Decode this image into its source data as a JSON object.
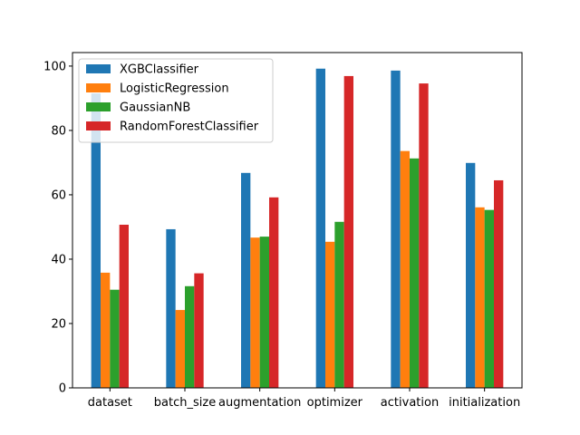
{
  "chart_data": {
    "type": "bar",
    "title": "",
    "xlabel": "",
    "ylabel": "",
    "categories": [
      "dataset",
      "batch_size",
      "augmentation",
      "optimizer",
      "activation",
      "initialization"
    ],
    "series": [
      {
        "name": "XGBClassifier",
        "color": "#1f77b4",
        "values": [
          91.5,
          49.3,
          66.8,
          99.2,
          98.6,
          69.9
        ]
      },
      {
        "name": "LogisticRegression",
        "color": "#ff7f0e",
        "values": [
          35.8,
          24.2,
          46.7,
          45.4,
          73.6,
          56.1
        ]
      },
      {
        "name": "GaussianNB",
        "color": "#2ca02c",
        "values": [
          30.5,
          31.6,
          47.0,
          51.6,
          71.3,
          55.3
        ]
      },
      {
        "name": "RandomForestClassifier",
        "color": "#d62728",
        "values": [
          50.7,
          35.6,
          59.2,
          96.9,
          94.6,
          64.5
        ]
      }
    ],
    "ylim": [
      0,
      104.2
    ],
    "yticks": [
      0,
      20,
      40,
      60,
      80,
      100
    ],
    "grid": false,
    "legend_position": "top-left"
  }
}
